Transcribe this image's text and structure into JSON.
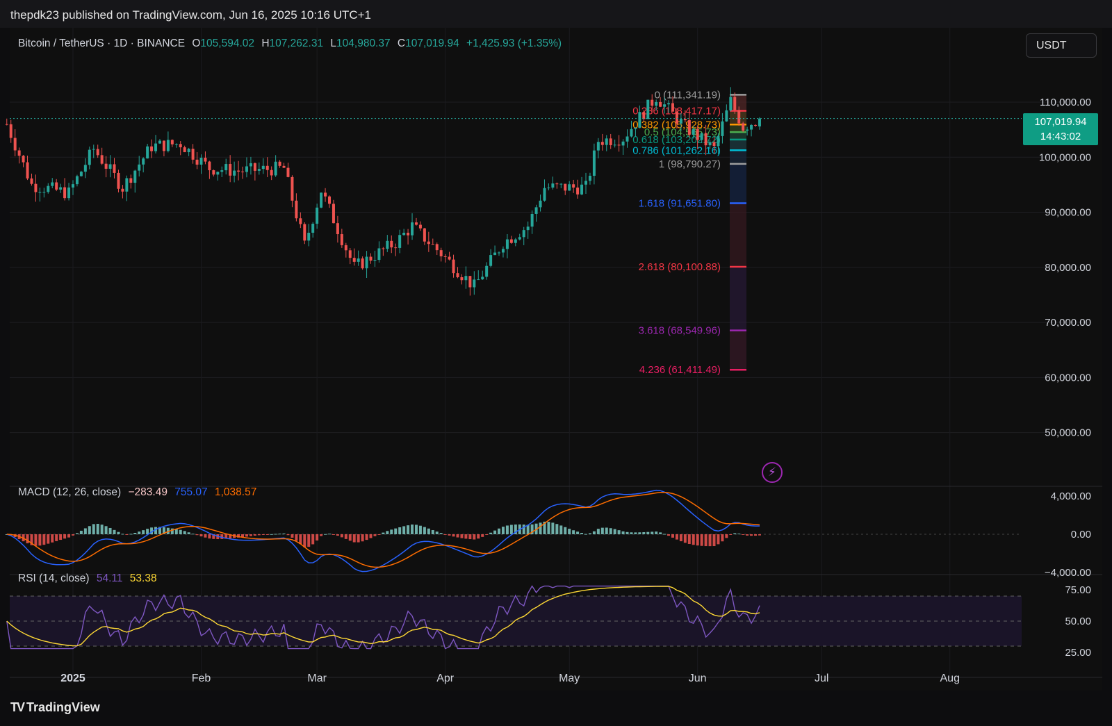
{
  "header": {
    "publisher": "thepdk23 published on TradingView.com, Jun 16, 2025 10:16 UTC+1"
  },
  "legend": {
    "symbol": "Bitcoin / TetherUS · 1D · BINANCE",
    "open_key": "O",
    "open": "105,594.02",
    "high_key": "H",
    "high": "107,262.31",
    "low_key": "L",
    "low": "104,980.37",
    "close_key": "C",
    "close": "107,019.94",
    "change": "+1,425.93 (+1.35%)"
  },
  "currency_button": "USDT",
  "last_price": {
    "price": "107,019.94",
    "countdown": "14:43:02"
  },
  "colors": {
    "up": "#26a69a",
    "down": "#ef5350",
    "macd": "#2962ff",
    "signal": "#ff6d00",
    "rsi": "#7e57c2",
    "rsi_ma": "#fdd835",
    "tag": "#0f9d84"
  },
  "price_axis": [
    "110,000.00",
    "100,000.00",
    "90,000.00",
    "80,000.00",
    "70,000.00",
    "60,000.00",
    "50,000.00"
  ],
  "time_axis": [
    "2025",
    "Feb",
    "Mar",
    "Apr",
    "May",
    "Jun",
    "Jul",
    "Aug"
  ],
  "fibonacci": [
    {
      "text": "0 (111,341.19)",
      "price": 111341.19,
      "color": "#9e9e9e"
    },
    {
      "text": "0.236 (108,417.17)",
      "price": 108417.17,
      "color": "#f23645"
    },
    {
      "text": "0.382 (105,928.73)",
      "price": 105928.73,
      "color": "#ff9800"
    },
    {
      "text": "0.5 (104,565.73)",
      "price": 104565.73,
      "color": "#4caf50"
    },
    {
      "text": "0.618 (103,202.72)",
      "price": 103202.72,
      "color": "#089981"
    },
    {
      "text": "0.786 (101,262.16)",
      "price": 101262.16,
      "color": "#00bcd4"
    },
    {
      "text": "1 (98,790.27)",
      "price": 98790.27,
      "color": "#9e9e9e"
    },
    {
      "text": "1.618 (91,651.80)",
      "price": 91651.8,
      "color": "#2962ff"
    },
    {
      "text": "2.618 (80,100.88)",
      "price": 80100.88,
      "color": "#f23645"
    },
    {
      "text": "3.618 (68,549.96)",
      "price": 68549.96,
      "color": "#9c27b0"
    },
    {
      "text": "4.236 (61,411.49)",
      "price": 61411.49,
      "color": "#e91e63"
    }
  ],
  "macd": {
    "title": "MACD (12, 26, close)",
    "hist": "−283.49",
    "macd": "755.07",
    "signal": "1,038.57",
    "axis": [
      "4,000.00",
      "0.00",
      "−4,000.00"
    ]
  },
  "rsi": {
    "title": "RSI (14, close)",
    "rsi": "54.11",
    "ma": "53.38",
    "axis": [
      "75.00",
      "50.00",
      "25.00"
    ]
  },
  "chart_data": {
    "type": "candlestick",
    "symbol": "BTCUSDT",
    "interval": "1D",
    "ylim": [
      45000,
      115000
    ],
    "anchors": [
      [
        "2024-12-16",
        106000
      ],
      [
        "2024-12-22",
        95000
      ],
      [
        "2024-12-31",
        93500
      ],
      [
        "2025-01-06",
        101500
      ],
      [
        "2025-01-13",
        94500
      ],
      [
        "2025-01-20",
        102000
      ],
      [
        "2025-01-27",
        102500
      ],
      [
        "2025-02-03",
        98000
      ],
      [
        "2025-02-10",
        97500
      ],
      [
        "2025-02-21",
        98000
      ],
      [
        "2025-02-26",
        84000
      ],
      [
        "2025-03-02",
        94000
      ],
      [
        "2025-03-10",
        80000
      ],
      [
        "2025-03-20",
        84500
      ],
      [
        "2025-03-24",
        87500
      ],
      [
        "2025-03-31",
        82500
      ],
      [
        "2025-04-08",
        76500
      ],
      [
        "2025-04-15",
        84500
      ],
      [
        "2025-04-21",
        87500
      ],
      [
        "2025-04-25",
        94500
      ],
      [
        "2025-05-05",
        94500
      ],
      [
        "2025-05-08",
        103000
      ],
      [
        "2025-05-14",
        103500
      ],
      [
        "2025-05-22",
        111000
      ],
      [
        "2025-05-29",
        105500
      ],
      [
        "2025-06-05",
        101500
      ],
      [
        "2025-06-09",
        110200
      ],
      [
        "2025-06-12",
        105500
      ],
      [
        "2025-06-16",
        107020
      ]
    ]
  }
}
